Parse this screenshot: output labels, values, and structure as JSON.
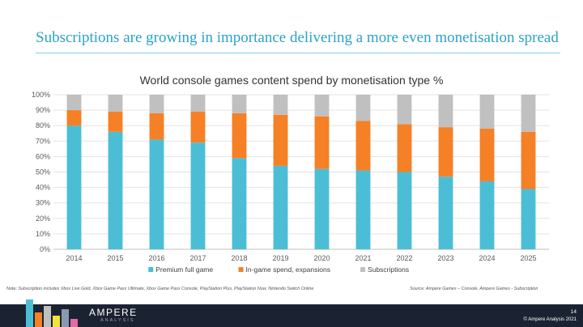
{
  "slide": {
    "title": "Subscriptions are growing in importance delivering a more even monetisation spread",
    "note": "Note: Subscription includes Xbox Live Gold, Xbox Game Pass Ultimate, Xbox Game Pass Console, PlayStation Plus, PlayStation Now, Nintendo Switch Online",
    "source": "Source: Ampere Games – Console, Ampere Games - Subscription"
  },
  "footer": {
    "brand": "AMPERE",
    "brand_sub": "ANALYSIS",
    "page_number": "14",
    "copyright": "© Ampere Analysis 2021"
  },
  "chart_data": {
    "type": "bar",
    "stacked": true,
    "percent": true,
    "title": "World console games content spend by monetisation type %",
    "xlabel": "",
    "ylabel": "",
    "ylim": [
      0,
      100
    ],
    "yticks": [
      "0%",
      "10%",
      "20%",
      "30%",
      "40%",
      "50%",
      "60%",
      "70%",
      "80%",
      "90%",
      "100%"
    ],
    "grid": true,
    "legend": "bottom",
    "categories": [
      "2014",
      "2015",
      "2016",
      "2017",
      "2018",
      "2019",
      "2020",
      "2021",
      "2022",
      "2023",
      "2024",
      "2025"
    ],
    "series": [
      {
        "name": "Premium full game",
        "color": "#4bbed6",
        "values": [
          80,
          76,
          71,
          69,
          59,
          54,
          52,
          51,
          50,
          47,
          44,
          39
        ]
      },
      {
        "name": "In-game spend, expansions",
        "color": "#f58025",
        "values": [
          10,
          13,
          17,
          20,
          29,
          33,
          34,
          32,
          31,
          32,
          34,
          37
        ]
      },
      {
        "name": "Subscriptions",
        "color": "#c0c0c0",
        "values": [
          10,
          11,
          12,
          11,
          12,
          13,
          14,
          17,
          19,
          21,
          22,
          24
        ]
      }
    ]
  }
}
